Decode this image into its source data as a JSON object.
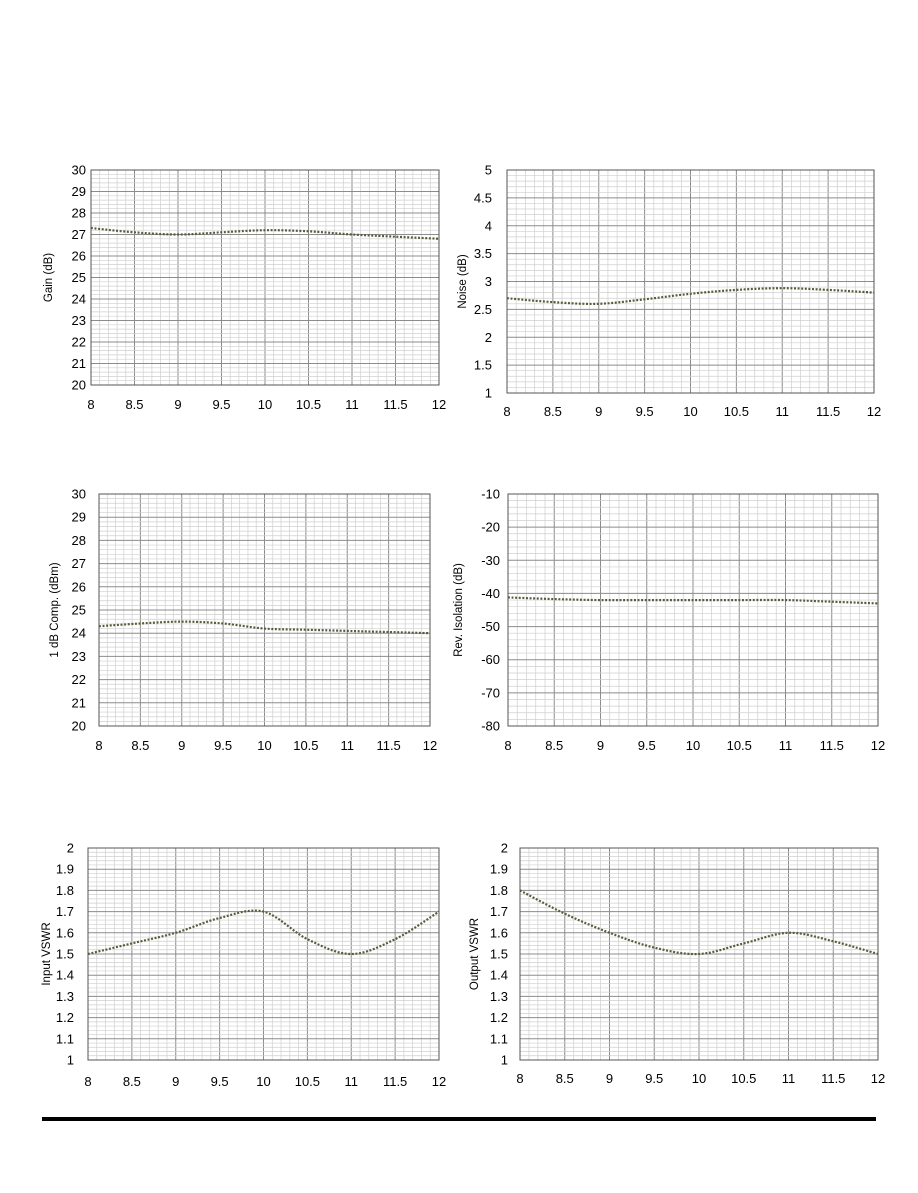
{
  "chart_data": [
    {
      "type": "line",
      "ylabel": "Gain (dB)",
      "xlim": [
        8,
        12
      ],
      "ylim": [
        20,
        30
      ],
      "xticks": [
        "8",
        "8.5",
        "9",
        "9.5",
        "10",
        "10.5",
        "11",
        "11.5",
        "12"
      ],
      "yticks": [
        "20",
        "21",
        "22",
        "23",
        "24",
        "25",
        "26",
        "27",
        "28",
        "29",
        "30"
      ],
      "grid": true,
      "series": [
        {
          "x": [
            8,
            8.5,
            9,
            9.5,
            10,
            10.5,
            11,
            11.5,
            12
          ],
          "y": [
            27.3,
            27.1,
            27.0,
            27.1,
            27.2,
            27.15,
            27.0,
            26.9,
            26.8
          ]
        }
      ]
    },
    {
      "type": "line",
      "ylabel": "Noise (dB)",
      "xlim": [
        8,
        12
      ],
      "ylim": [
        1,
        5
      ],
      "xticks": [
        "8",
        "8.5",
        "9",
        "9.5",
        "10",
        "10.5",
        "11",
        "11.5",
        "12"
      ],
      "yticks": [
        "1",
        "1.5",
        "2",
        "2.5",
        "3",
        "3.5",
        "4",
        "4.5",
        "5"
      ],
      "grid": true,
      "series": [
        {
          "x": [
            8,
            8.5,
            9,
            9.5,
            10,
            10.5,
            11,
            11.5,
            12
          ],
          "y": [
            2.7,
            2.63,
            2.6,
            2.68,
            2.78,
            2.85,
            2.88,
            2.85,
            2.8
          ]
        }
      ]
    },
    {
      "type": "line",
      "ylabel": "1 dB Comp. (dBm)",
      "xlim": [
        8,
        12
      ],
      "ylim": [
        20,
        30
      ],
      "xticks": [
        "8",
        "8.5",
        "9",
        "9.5",
        "10",
        "10.5",
        "11",
        "11.5",
        "12"
      ],
      "yticks": [
        "20",
        "21",
        "22",
        "23",
        "24",
        "25",
        "26",
        "27",
        "28",
        "29",
        "30"
      ],
      "grid": true,
      "series": [
        {
          "x": [
            8,
            8.5,
            9,
            9.5,
            10,
            10.5,
            11,
            11.5,
            12
          ],
          "y": [
            24.3,
            24.42,
            24.5,
            24.42,
            24.2,
            24.15,
            24.1,
            24.05,
            24.0
          ]
        }
      ]
    },
    {
      "type": "line",
      "ylabel": "Rev. Isolation (dB)",
      "xlim": [
        8,
        12
      ],
      "ylim": [
        -80,
        -10
      ],
      "xticks": [
        "8",
        "8.5",
        "9",
        "9.5",
        "10",
        "10.5",
        "11",
        "11.5",
        "12"
      ],
      "yticks": [
        "-80",
        "-70",
        "-60",
        "-50",
        "-40",
        "-30",
        "-20",
        "-10"
      ],
      "grid": true,
      "series": [
        {
          "x": [
            8,
            8.5,
            9,
            9.5,
            10,
            10.5,
            11,
            11.5,
            12
          ],
          "y": [
            -41.2,
            -41.7,
            -42,
            -42,
            -42,
            -42,
            -42,
            -42.5,
            -43
          ]
        }
      ]
    },
    {
      "type": "line",
      "ylabel": "Input VSWR",
      "xlim": [
        8,
        12
      ],
      "ylim": [
        1,
        2
      ],
      "xticks": [
        "8",
        "8.5",
        "9",
        "9.5",
        "10",
        "10.5",
        "11",
        "11.5",
        "12"
      ],
      "yticks": [
        "1",
        "1.1",
        "1.2",
        "1.3",
        "1.4",
        "1.5",
        "1.6",
        "1.7",
        "1.8",
        "1.9",
        "2"
      ],
      "grid": true,
      "series": [
        {
          "x": [
            8,
            8.5,
            9,
            9.5,
            10,
            10.5,
            11,
            11.5,
            12
          ],
          "y": [
            1.5,
            1.55,
            1.6,
            1.67,
            1.7,
            1.57,
            1.5,
            1.57,
            1.7
          ]
        }
      ]
    },
    {
      "type": "line",
      "ylabel": "Output VSWR",
      "xlim": [
        8,
        12
      ],
      "ylim": [
        1,
        2
      ],
      "xticks": [
        "8",
        "8.5",
        "9",
        "9.5",
        "10",
        "10.5",
        "11",
        "11.5",
        "12"
      ],
      "yticks": [
        "1",
        "1.1",
        "1.2",
        "1.3",
        "1.4",
        "1.5",
        "1.6",
        "1.7",
        "1.8",
        "1.9",
        "2"
      ],
      "grid": true,
      "series": [
        {
          "x": [
            8,
            8.5,
            9,
            9.5,
            10,
            10.5,
            11,
            11.5,
            12
          ],
          "y": [
            1.8,
            1.69,
            1.6,
            1.53,
            1.5,
            1.55,
            1.6,
            1.56,
            1.5
          ]
        }
      ]
    }
  ]
}
